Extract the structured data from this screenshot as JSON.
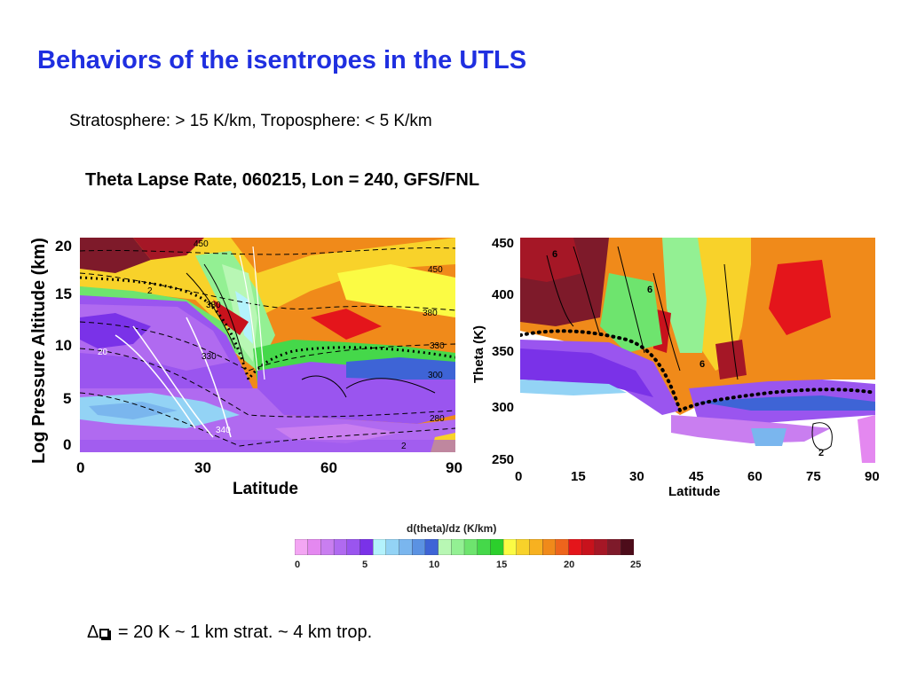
{
  "slide": {
    "title": "Behaviors of the isentropes in the UTLS",
    "subtitle": "Stratosphere:  > 15 K/km,  Troposphere:  < 5 K/km",
    "figure_title": "Theta Lapse Rate, 060215, Lon = 240, GFS/FNL",
    "footer_delta": "Δ",
    "footer_text": " = 20 K  ~  1 km strat.  ~ 4 km trop."
  },
  "left_plot": {
    "ylabel": "Log Pressure Altitude (km)",
    "xlabel": "Latitude",
    "yticks": [
      "20",
      "15",
      "10",
      "5",
      "0"
    ],
    "xticks": [
      "0",
      "30",
      "60",
      "90"
    ],
    "contour_labels": [
      "450",
      "450",
      "380",
      "380",
      "330",
      "330",
      "300",
      "280",
      "20",
      "2",
      "2",
      "340"
    ]
  },
  "right_plot": {
    "ylabel": "Theta (K)",
    "xlabel": "Latitude",
    "yticks": [
      "450",
      "400",
      "350",
      "300",
      "250"
    ],
    "xticks": [
      "0",
      "15",
      "30",
      "45",
      "60",
      "75",
      "90"
    ],
    "contour_labels": [
      "6",
      "6",
      "6",
      "2"
    ]
  },
  "colorbar": {
    "title": "d(theta)/dz (K/km)",
    "ticks": [
      "0",
      "5",
      "10",
      "15",
      "20",
      "25"
    ],
    "colors": [
      "#f3a6f3",
      "#e488f0",
      "#c97ef0",
      "#b06af0",
      "#9a55ef",
      "#7a32e8",
      "#b3f2fc",
      "#93d3f5",
      "#7ab6ee",
      "#5b92e2",
      "#3e64d6",
      "#b8f7b4",
      "#93f093",
      "#6ee46e",
      "#45d84a",
      "#2ccf2c",
      "#fbfb44",
      "#f8d22a",
      "#f7b120",
      "#f08a1a",
      "#ee651c",
      "#e4151b",
      "#c8121c",
      "#a51726",
      "#7e1a2a",
      "#4d0c1a"
    ]
  }
}
